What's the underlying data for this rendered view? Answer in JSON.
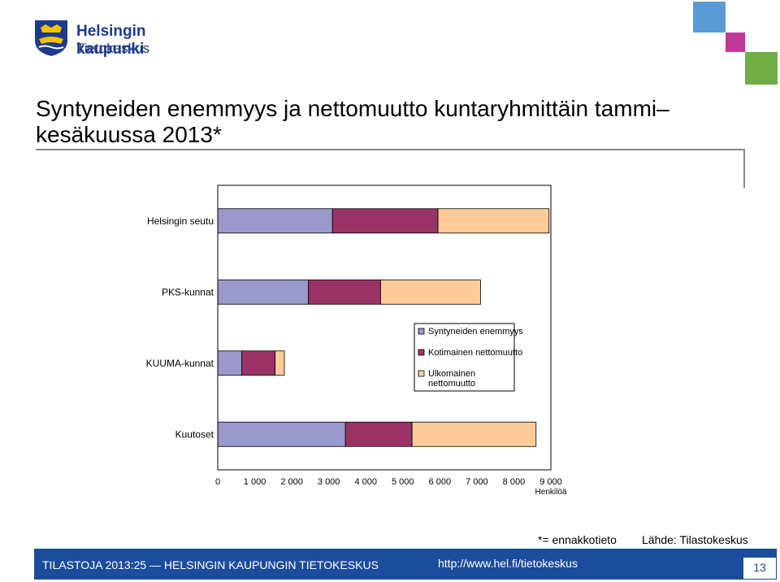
{
  "header": {
    "logo_line1": "Helsingin kaupunki",
    "logo_line2": "Tietokeskus"
  },
  "title": "Syntyneiden enemmyys ja nettomuutto kuntaryhmittäin tammi–kesäkuussa 2013*",
  "colors": {
    "series1": "#9999cc",
    "series2": "#993366",
    "series3": "#ffcc99",
    "footer": "#1c4c9c",
    "deco_blue": "#5b9bd5",
    "deco_magenta": "#c0399a",
    "deco_green": "#70ad47"
  },
  "chart_data": {
    "type": "bar",
    "orientation": "horizontal",
    "stacked": true,
    "categories": [
      "Helsingin seutu",
      "PKS-kunnat",
      "KUUMA-kunnat",
      "Kuutoset"
    ],
    "series": [
      {
        "name": "Syntyneiden enemmyys",
        "values": [
          3100,
          2450,
          650,
          3450
        ]
      },
      {
        "name": "Kotimainen nettomuutto",
        "values": [
          2850,
          1950,
          900,
          1800
        ]
      },
      {
        "name": "Ulkomainen nettomuutto",
        "values": [
          3000,
          2700,
          250,
          3350
        ]
      }
    ],
    "xlim": [
      0,
      9000
    ],
    "xticks": [
      "0",
      "1 000",
      "2 000",
      "3 000",
      "4 000",
      "5 000",
      "6 000",
      "7 000",
      "8 000",
      "9 000"
    ],
    "xlabel": "Henkilöä",
    "legend_position": "center-right",
    "legend_labels": [
      "Syntyneiden enemmyys",
      "Kotimainen nettomuutto",
      "Ulkomainen\nnettomuutto"
    ]
  },
  "footnotes": {
    "note": "*= ennakkotieto",
    "source": "Lähde: Tilastokeskus"
  },
  "footer": {
    "left": "TILASTOJA 2013:25 — HELSINGIN KAUPUNGIN TIETOKESKUS",
    "url": "http://www.hel.fi/tietokeskus",
    "page": "13"
  }
}
